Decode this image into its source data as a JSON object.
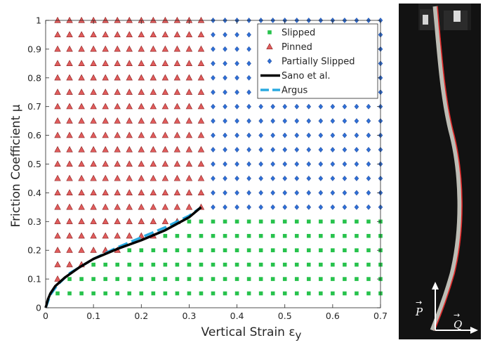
{
  "chart_data": {
    "type": "scatter",
    "xlabel": "Vertical Strain ε",
    "xlabel_subscript": "y",
    "ylabel": "Friction Coefficient μ",
    "xlim": [
      0,
      0.7
    ],
    "ylim": [
      0,
      1
    ],
    "x_ticks": [
      "0",
      "0.1",
      "0.2",
      "0.3",
      "0.4",
      "0.5",
      "0.6",
      "0.7"
    ],
    "y_ticks": [
      "0",
      "0.1",
      "0.2",
      "0.3",
      "0.4",
      "0.5",
      "0.6",
      "0.7",
      "0.8",
      "0.9",
      "1"
    ],
    "legend_position": "top-right",
    "grid_x_step": 0.025,
    "grid_y_step": 0.05,
    "series": [
      {
        "name": "Slipped",
        "marker": "square",
        "color": "#27c24c",
        "region": "mu < 0.35 and points below the transition curve",
        "x_range": [
          0.05,
          0.7
        ],
        "y_range": [
          0.05,
          0.3
        ]
      },
      {
        "name": "Pinned",
        "marker": "triangle",
        "color": "#e05c5c",
        "region": "strain <= 0.325 and points above the transition curve",
        "x_range": [
          0.025,
          0.325
        ],
        "y_range": [
          0.1,
          1.0
        ]
      },
      {
        "name": "Partially Slipped",
        "marker": "diamond",
        "color": "#2f6fd6",
        "region": "strain > 0.325 and mu >= 0.35",
        "x_range": [
          0.35,
          0.7
        ],
        "y_range": [
          0.35,
          1.0
        ]
      },
      {
        "name": "Sano et al.",
        "type": "line",
        "color": "#000000",
        "x": [
          0,
          0.005,
          0.01,
          0.02,
          0.04,
          0.07,
          0.1,
          0.15,
          0.2,
          0.25,
          0.3,
          0.325
        ],
        "y": [
          0,
          0.03,
          0.05,
          0.075,
          0.105,
          0.14,
          0.17,
          0.205,
          0.235,
          0.27,
          0.315,
          0.35
        ]
      },
      {
        "name": "Argus",
        "type": "line",
        "dashed": true,
        "color": "#29a9e0",
        "x": [
          0,
          0.01,
          0.025,
          0.05,
          0.1,
          0.15,
          0.2,
          0.25,
          0.3,
          0.325
        ],
        "y": [
          0,
          0.045,
          0.08,
          0.12,
          0.17,
          0.21,
          0.245,
          0.28,
          0.32,
          0.35
        ]
      }
    ]
  },
  "photo": {
    "label_P": "P",
    "label_Q": "Q",
    "background": "#111111",
    "strip_color": "#cfcfc8",
    "curve_color": "#e02828"
  }
}
